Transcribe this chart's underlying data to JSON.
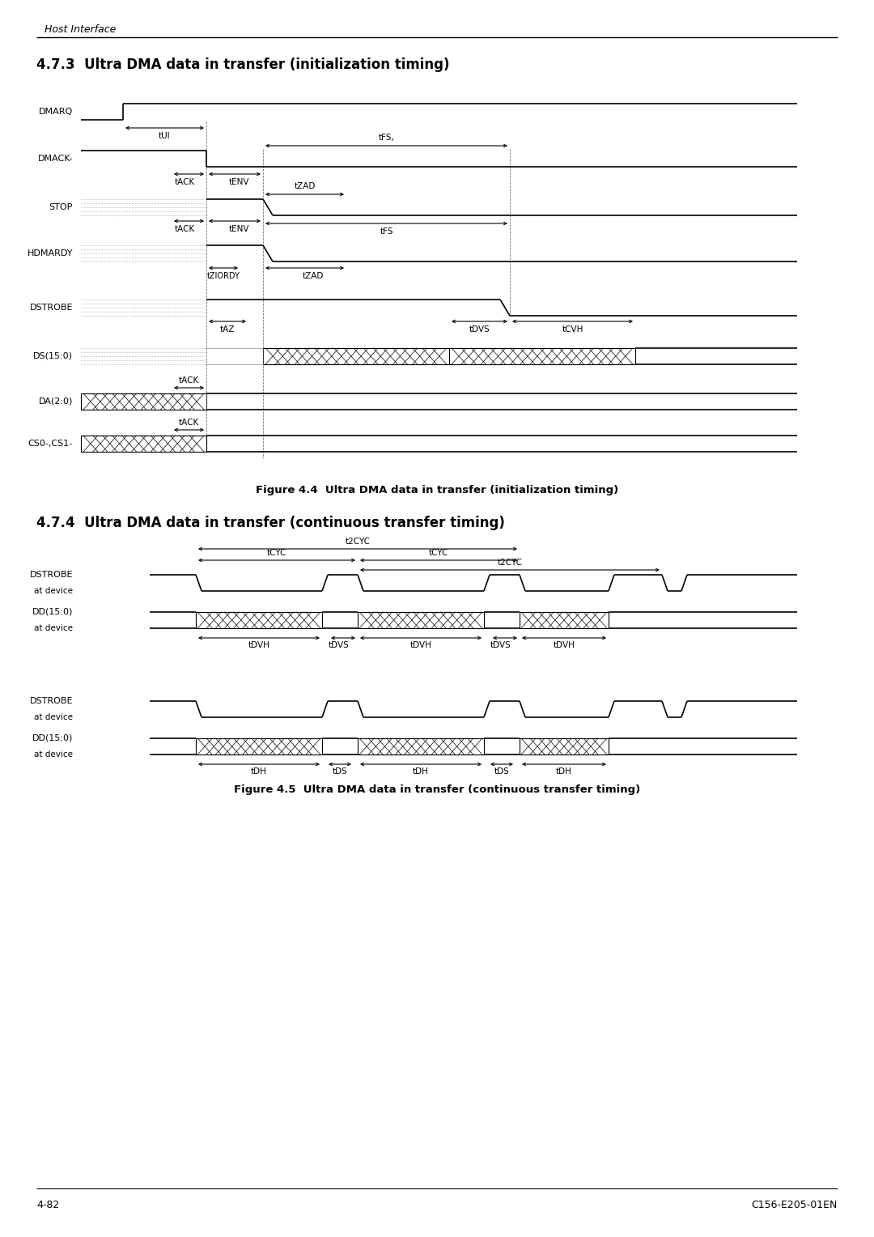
{
  "page_bg": "#ffffff",
  "header_text": "Host Interface",
  "section1_title": "4.7.3  Ultra DMA data in transfer (initialization timing)",
  "section2_title": "4.7.4  Ultra DMA data in transfer (continuous transfer timing)",
  "fig4_caption": "Figure 4.4  Ultra DMA data in transfer (initialization timing)",
  "fig5_caption": "Figure 4.5  Ultra DMA data in transfer (continuous transfer timing)",
  "footer_left": "4-82",
  "footer_right": "C156-E205-01EN"
}
